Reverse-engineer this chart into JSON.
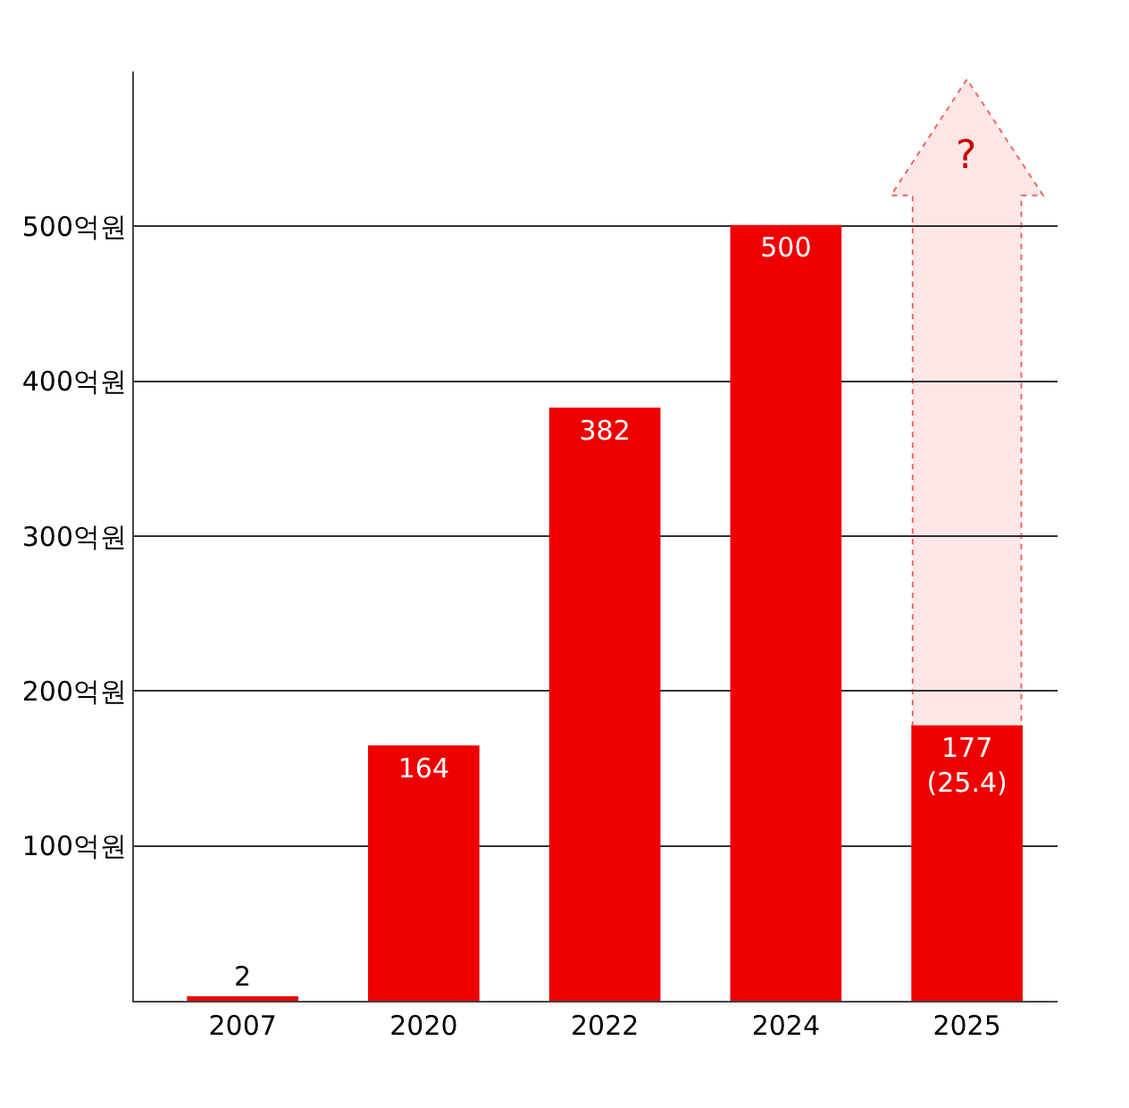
{
  "chart_data": {
    "type": "bar",
    "categories": [
      "2007",
      "2020",
      "2022",
      "2024",
      "2025"
    ],
    "values": [
      2,
      164,
      382,
      500,
      177
    ],
    "color": "#ee0000",
    "value_labels": [
      "2",
      "164",
      "382",
      "500",
      "177\n(25.4)"
    ],
    "ylim": [
      0,
      600
    ],
    "yticks": [
      {
        "value": 100,
        "label": "100억원"
      },
      {
        "value": 200,
        "label": "200억원"
      },
      {
        "value": 300,
        "label": "300억원"
      },
      {
        "value": 400,
        "label": "400억원"
      },
      {
        "value": 500,
        "label": "500억원"
      }
    ],
    "grid": "y",
    "annotations": [
      "?"
    ]
  }
}
